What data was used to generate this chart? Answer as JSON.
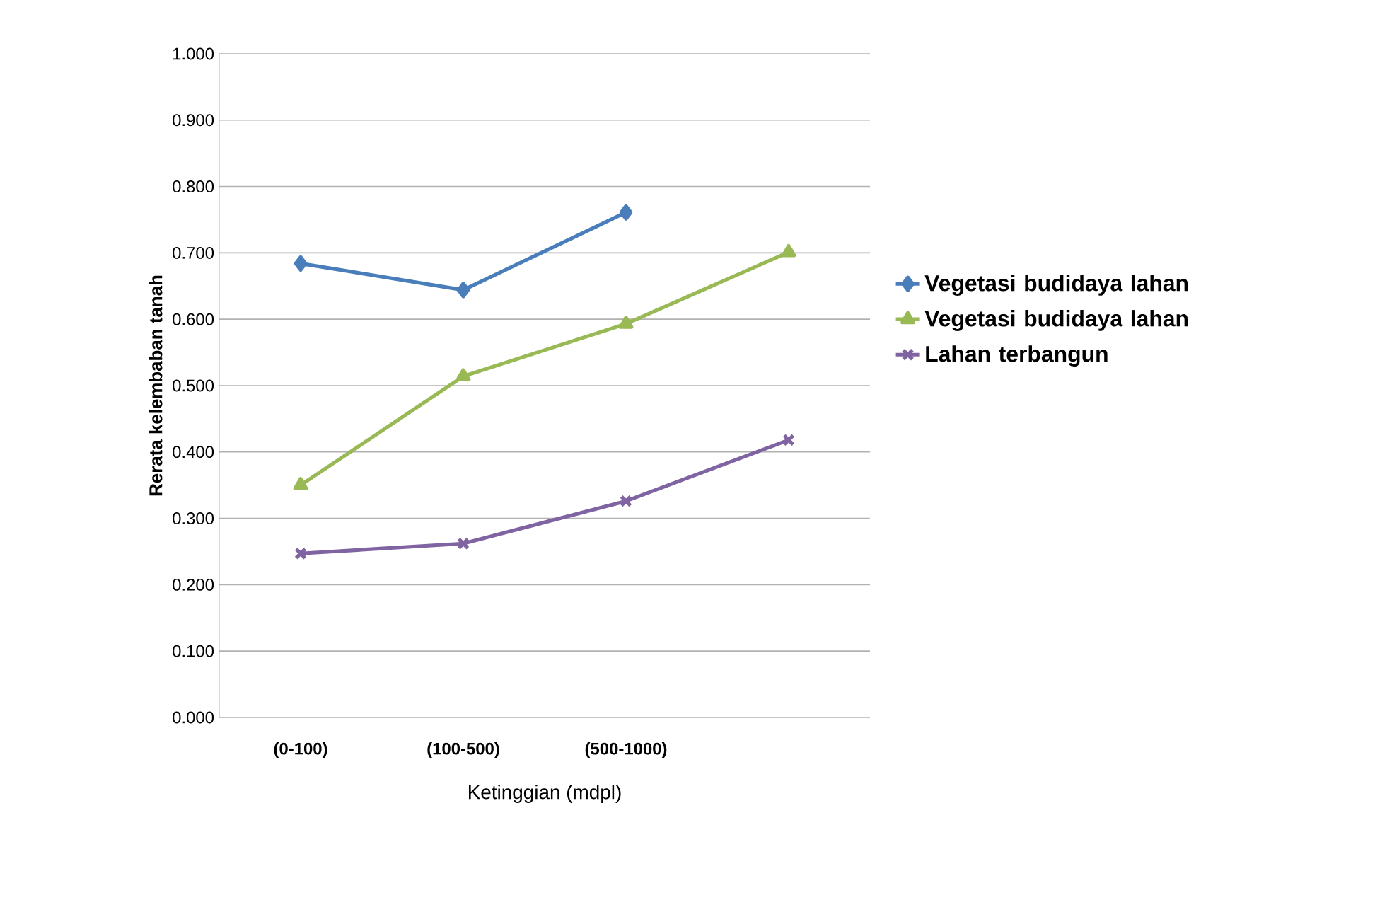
{
  "chart_data": {
    "type": "line",
    "xlabel": "Ketinggian (mdpl)",
    "ylabel": "Rerata kelembaban tanah",
    "categories": [
      "(0-100)",
      "(100-500)",
      "(500-1000)",
      null
    ],
    "series": [
      {
        "name": "Vegetasi budidaya lahan",
        "color": "#4a7ebb",
        "marker": "diamond",
        "values": [
          0.684,
          0.644,
          0.761,
          null
        ]
      },
      {
        "name": "Vegetasi budidaya lahan",
        "color": "#98b954",
        "marker": "triangle",
        "values": [
          0.35,
          0.514,
          0.593,
          0.701
        ]
      },
      {
        "name": "Lahan terbangun",
        "color": "#8064a2",
        "marker": "cross",
        "values": [
          0.247,
          0.262,
          0.326,
          0.418
        ]
      }
    ],
    "ylim": [
      0,
      1
    ],
    "yticks": [
      {
        "value": 0,
        "label": "0.000"
      },
      {
        "value": 0.1,
        "label": "0.100"
      },
      {
        "value": 0.2,
        "label": "0.200"
      },
      {
        "value": 0.3,
        "label": "0.300"
      },
      {
        "value": 0.4,
        "label": "0.400"
      },
      {
        "value": 0.5,
        "label": "0.500"
      },
      {
        "value": 0.6,
        "label": "0.600"
      },
      {
        "value": 0.7,
        "label": "0.700"
      },
      {
        "value": 0.8,
        "label": "0.800"
      },
      {
        "value": 0.9,
        "label": "0.900"
      },
      {
        "value": 1,
        "label": "1.000"
      }
    ],
    "grid": "y",
    "legend": "right",
    "line_style": "solid"
  }
}
